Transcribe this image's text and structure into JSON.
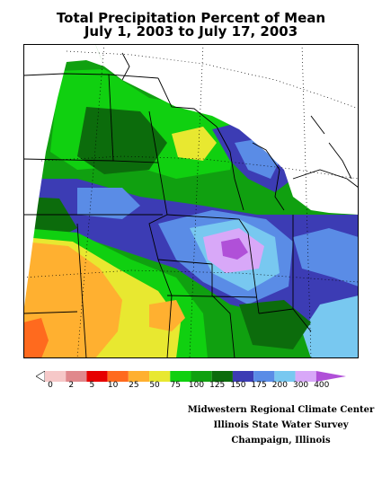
{
  "title": {
    "line1": "Total Precipitation Percent of Mean",
    "line2": "July 1, 2003 to July 17, 2003"
  },
  "legend": {
    "labels": [
      "0",
      "2",
      "5",
      "10",
      "25",
      "50",
      "75",
      "100",
      "125",
      "150",
      "175",
      "200",
      "300",
      "400"
    ],
    "colors": [
      "#f6c8c8",
      "#e0888c",
      "#e60000",
      "#ff6a1e",
      "#ffb030",
      "#e8e830",
      "#10d010",
      "#10a010",
      "#0c6c0c",
      "#3c3cb4",
      "#5a8ce6",
      "#78c8f0",
      "#d8a8f8",
      "#b050d8"
    ]
  },
  "map": {
    "colors": {
      "outside": "#ffffff",
      "base": "#10a010",
      "light_green": "#10d010",
      "dark_green": "#0c6c0c",
      "yellow": "#e8e830",
      "orange": "#ffb030",
      "red_orange": "#ff6a1e",
      "navy": "#3c3cb4",
      "blue": "#5a8ce6",
      "light_blue": "#78c8f0",
      "lavender": "#d8a8f8",
      "purple": "#b050d8",
      "lines": "#000000"
    }
  },
  "credits": {
    "line1": "Midwestern Regional Climate Center",
    "line2": "Illinois State Water Survey",
    "line3": "Champaign, Illinois"
  }
}
